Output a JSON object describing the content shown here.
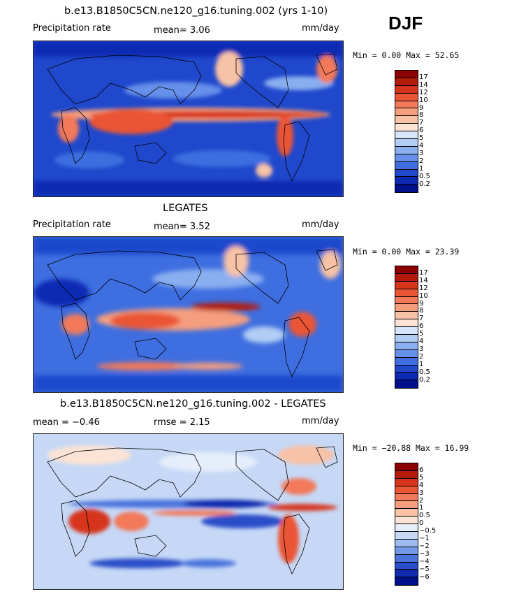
{
  "season": "DJF",
  "panels": [
    {
      "title": "b.e13.B1850C5CN.ne120_g16.tuning.002 (yrs 1-10)",
      "left_label": "Precipitation rate",
      "mid_label": "mean=   3.06",
      "units": "mm/day",
      "minmax": "Min =    0.00 Max =   52.65",
      "levels": [
        "17",
        "14",
        "12",
        "10",
        "9",
        "8",
        "7",
        "6",
        "5",
        "4",
        "3",
        "2",
        "1",
        "0.5",
        "0.2"
      ],
      "colors": [
        "#8b0000",
        "#b41a0a",
        "#d6341c",
        "#ea5535",
        "#f2795a",
        "#f59e7e",
        "#f7c2a6",
        "#fbe4d6",
        "#d7e5f8",
        "#b2cdf4",
        "#8aaff0",
        "#6690ea",
        "#3e6ee0",
        "#1f48cc",
        "#0c2ab4",
        "#00108c"
      ]
    },
    {
      "title": "LEGATES",
      "left_label": "Precipitation rate",
      "mid_label": "mean=   3.52",
      "units": "mm/day",
      "minmax": "Min =    0.00 Max =   23.39",
      "levels": [
        "17",
        "14",
        "12",
        "10",
        "9",
        "8",
        "7",
        "6",
        "5",
        "4",
        "3",
        "2",
        "1",
        "0.5",
        "0.2"
      ],
      "colors": [
        "#8b0000",
        "#b41a0a",
        "#d6341c",
        "#ea5535",
        "#f2795a",
        "#f59e7e",
        "#f7c2a6",
        "#fbe4d6",
        "#d7e5f8",
        "#b2cdf4",
        "#8aaff0",
        "#6690ea",
        "#3e6ee0",
        "#1f48cc",
        "#0c2ab4",
        "#00108c"
      ]
    },
    {
      "title": "b.e13.B1850C5CN.ne120_g16.tuning.002 - LEGATES",
      "left_label": "mean =   −0.46",
      "mid_label": "rmse =    2.15",
      "units": "mm/day",
      "minmax": "Min = −20.88 Max =   16.99",
      "levels": [
        "6",
        "5",
        "4",
        "3",
        "2",
        "1",
        "0.5",
        "0",
        "−0.5",
        "−1",
        "−2",
        "−3",
        "−4",
        "−5",
        "−6"
      ],
      "colors": [
        "#8b0000",
        "#b41a0a",
        "#d6341c",
        "#ea5535",
        "#f2795a",
        "#f59e7e",
        "#f7c2a6",
        "#fbe4d6",
        "#e6eefb",
        "#c6d8f6",
        "#9ebcf0",
        "#7399e8",
        "#4c74dc",
        "#2a4ec8",
        "#0f2cae",
        "#00108c"
      ]
    }
  ]
}
